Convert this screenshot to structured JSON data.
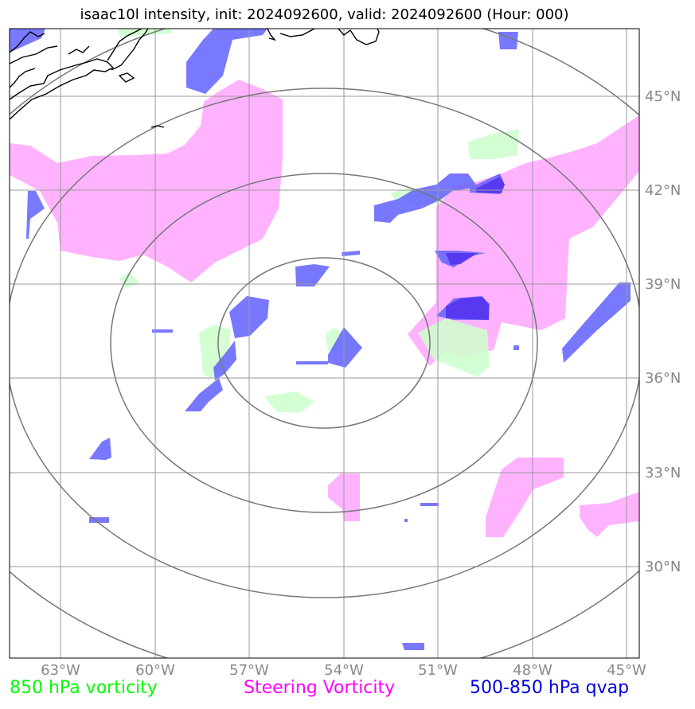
{
  "title": "isaac10l intensity, init: 2024092600, valid: 2024092600 (Hour: 000)",
  "map": {
    "latitude_labels": [
      "45°N",
      "42°N",
      "39°N",
      "36°N",
      "33°N",
      "30°N"
    ],
    "longitude_labels": [
      "63°W",
      "60°W",
      "57°W",
      "54°W",
      "51°W",
      "48°W",
      "45°W"
    ],
    "range_rings_count": 4
  },
  "legend": {
    "vorticity_850": {
      "label": "850 hPa vorticity",
      "color": "#00ff00"
    },
    "steering": {
      "label": "Steering Vorticity",
      "color": "#ff00ff"
    },
    "qvap": {
      "label": "500-850 hPa qvap",
      "color": "#0000dd"
    }
  },
  "colors": {
    "green_fill": "#ccffcc",
    "magenta_fill": "#ffb3ff",
    "blue_fill": "#6666ff",
    "dark_blue_fill": "#5533ee",
    "grid": "#999999",
    "rings": "#777777",
    "coastline": "#000000",
    "axis_text": "#888888"
  }
}
